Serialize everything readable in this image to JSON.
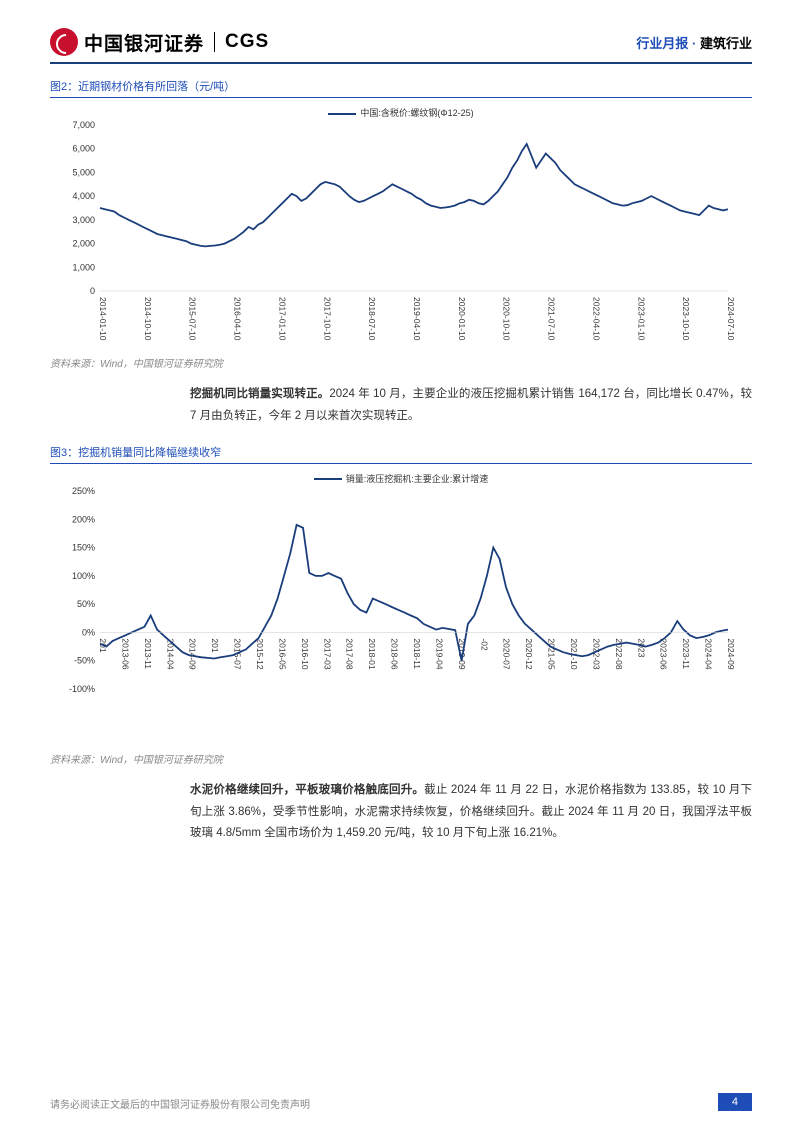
{
  "header": {
    "logo_cn": "中国银河证券",
    "logo_en": "CGS",
    "right_blue": "行业月报 · ",
    "right_black": "建筑行业"
  },
  "fig2": {
    "title": "图2：近期钢材价格有所回落（元/吨）",
    "legend": "中国:含税价:螺纹钢(Φ12-25)",
    "type": "line",
    "line_color": "#1a3d7c",
    "background_color": "#ffffff",
    "ylim": [
      0,
      7000
    ],
    "ytick_step": 1000,
    "yticks": [
      "0",
      "1,000",
      "2,000",
      "3,000",
      "4,000",
      "5,000",
      "6,000",
      "7,000"
    ],
    "xticks": [
      "2014-01-10",
      "2014-10-10",
      "2015-07-10",
      "2016-04-10",
      "2017-01-10",
      "2017-10-10",
      "2018-07-10",
      "2019-04-10",
      "2020-01-10",
      "2020-10-10",
      "2021-07-10",
      "2022-04-10",
      "2023-01-10",
      "2023-10-10",
      "2024-07-10"
    ],
    "values": [
      3500,
      3450,
      3400,
      3350,
      3200,
      3100,
      3000,
      2900,
      2800,
      2700,
      2600,
      2500,
      2400,
      2350,
      2300,
      2250,
      2200,
      2150,
      2100,
      2000,
      1950,
      1900,
      1880,
      1900,
      1920,
      1950,
      2000,
      2100,
      2200,
      2350,
      2500,
      2700,
      2600,
      2800,
      2900,
      3100,
      3300,
      3500,
      3700,
      3900,
      4100,
      4000,
      3800,
      3900,
      4100,
      4300,
      4500,
      4600,
      4550,
      4500,
      4400,
      4200,
      4000,
      3850,
      3750,
      3800,
      3900,
      4000,
      4100,
      4200,
      4350,
      4500,
      4400,
      4300,
      4200,
      4100,
      3950,
      3850,
      3700,
      3600,
      3550,
      3500,
      3520,
      3550,
      3600,
      3700,
      3750,
      3850,
      3800,
      3700,
      3650,
      3800,
      4000,
      4200,
      4500,
      4800,
      5200,
      5500,
      5900,
      6200,
      5700,
      5200,
      5500,
      5800,
      5600,
      5400,
      5100,
      4900,
      4700,
      4500,
      4400,
      4300,
      4200,
      4100,
      4000,
      3900,
      3800,
      3700,
      3650,
      3600,
      3620,
      3700,
      3750,
      3800,
      3900,
      4000,
      3900,
      3800,
      3700,
      3600,
      3500,
      3400,
      3350,
      3300,
      3250,
      3200,
      3400,
      3600,
      3500,
      3450,
      3400,
      3450
    ],
    "source": "资料来源：Wind，中国银河证券研究院"
  },
  "para1": {
    "bold": "挖掘机同比销量实现转正。",
    "rest": "2024 年 10 月，主要企业的液压挖掘机累计销售 164,172 台，同比增长 0.47%，较 7 月由负转正，今年 2 月以来首次实现转正。"
  },
  "fig3": {
    "title": "图3：挖掘机销量同比降幅继续收窄",
    "legend": "销量:液压挖掘机:主要企业:累计增速",
    "type": "line",
    "line_color": "#1a3d7c",
    "background_color": "#ffffff",
    "ylim": [
      -100,
      250
    ],
    "ytick_values": [
      -100,
      -50,
      0,
      50,
      100,
      150,
      200,
      250
    ],
    "yticks": [
      "-100%",
      "-50%",
      "0%",
      "50%",
      "100%",
      "150%",
      "200%",
      "250%"
    ],
    "xticks": [
      "201",
      "2013-06",
      "2013-11",
      "2014-04",
      "2014-09",
      "201",
      "2015-07",
      "2015-12",
      "2016-05",
      "2016-10",
      "2017-03",
      "2017-08",
      "2018-01",
      "2018-06",
      "2018-11",
      "2019-04",
      "2019-09",
      "-02",
      "2020-07",
      "2020-12",
      "2021-05",
      "2021-10",
      "2022-03",
      "2022-08",
      "2023",
      "2023-06",
      "2023-11",
      "2024-04",
      "2024-09"
    ],
    "values": [
      -20,
      -25,
      -15,
      -10,
      -5,
      0,
      5,
      10,
      30,
      5,
      -5,
      -15,
      -25,
      -35,
      -40,
      -42,
      -44,
      -45,
      -46,
      -44,
      -42,
      -40,
      -35,
      -30,
      -20,
      -10,
      10,
      30,
      60,
      100,
      140,
      190,
      185,
      105,
      100,
      100,
      105,
      100,
      95,
      70,
      50,
      40,
      35,
      60,
      55,
      50,
      45,
      40,
      35,
      30,
      25,
      15,
      10,
      5,
      8,
      6,
      4,
      -50,
      15,
      30,
      60,
      100,
      150,
      130,
      80,
      50,
      30,
      15,
      5,
      -5,
      -15,
      -25,
      -30,
      -35,
      -38,
      -40,
      -42,
      -40,
      -35,
      -30,
      -25,
      -22,
      -20,
      -18,
      -20,
      -22,
      -25,
      -22,
      -18,
      -10,
      0,
      20,
      5,
      -5,
      -10,
      -8,
      -5,
      0,
      3,
      5
    ],
    "source": "资料来源：Wind，中国银河证券研究院"
  },
  "para2": {
    "bold": "水泥价格继续回升，平板玻璃价格触底回升。",
    "rest": "截止 2024 年 11 月 22 日，水泥价格指数为 133.85，较 10 月下旬上涨 3.86%，受季节性影响，水泥需求持续恢复，价格继续回升。截止 2024 年 11 月 20 日，我国浮法平板玻璃 4.8/5mm 全国市场价为 1,459.20 元/吨，较 10 月下旬上涨 16.21%。"
  },
  "footer": {
    "disclaimer": "请务必阅读正文最后的中国银河证券股份有限公司免责声明",
    "page": "4"
  }
}
